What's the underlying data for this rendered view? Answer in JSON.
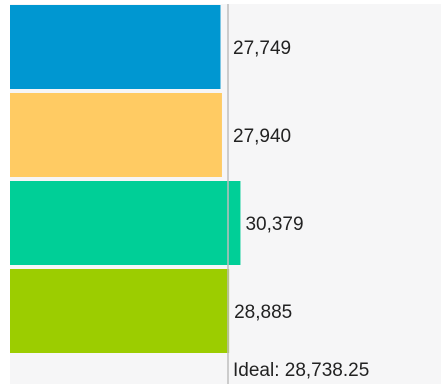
{
  "chart_data": {
    "type": "bar",
    "orientation": "horizontal",
    "categories": [
      "",
      "",
      "",
      ""
    ],
    "values": [
      27749,
      27940,
      30379,
      28885
    ],
    "value_labels": [
      "27,749",
      "27,940",
      "30,379",
      "28,885"
    ],
    "colors": [
      "#0097d1",
      "#ffcb63",
      "#00cf97",
      "#9ccd00"
    ],
    "reference_line": {
      "value": 28738.25,
      "label": "Ideal: 28,738.25",
      "color": "#bdbdbd"
    },
    "background": "#f6f6f7",
    "xlim": [
      0,
      28738.25
    ],
    "title": "",
    "xlabel": "",
    "ylabel": ""
  }
}
